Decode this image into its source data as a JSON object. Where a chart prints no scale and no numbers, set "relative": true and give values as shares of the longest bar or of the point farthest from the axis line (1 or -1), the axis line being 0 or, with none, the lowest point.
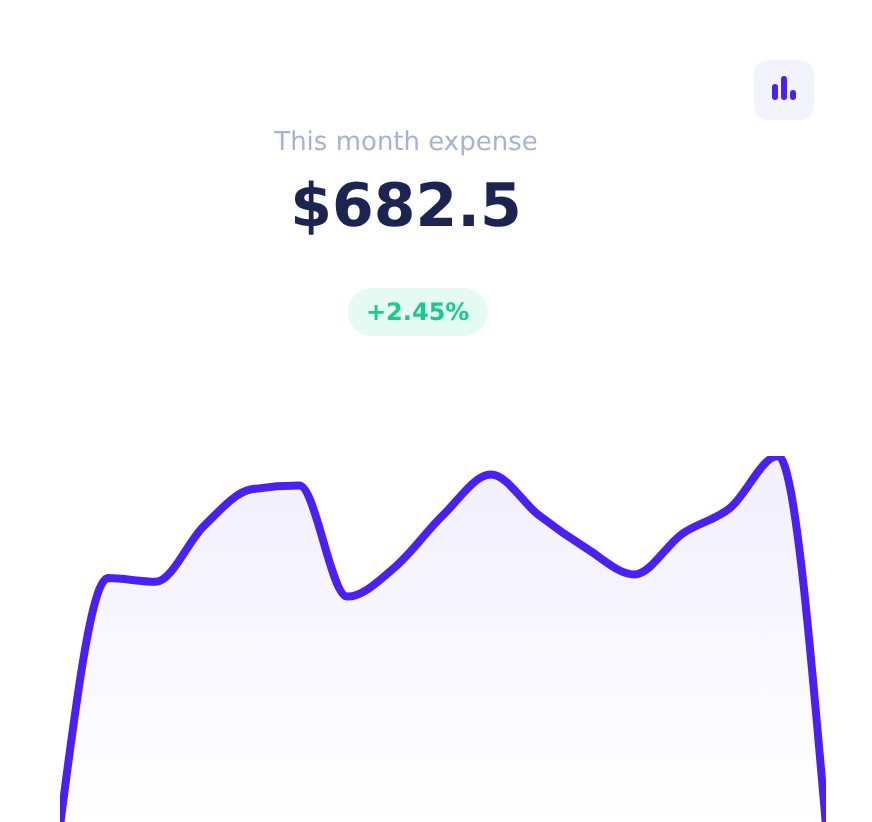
{
  "chart_data": {
    "type": "area",
    "title": "This month expense",
    "subtitle": "$682.5",
    "annotations": [
      "+2.45%"
    ],
    "relative": true,
    "categories": [
      null,
      null,
      null,
      null,
      null,
      null,
      null,
      null,
      null,
      null,
      null,
      null,
      null,
      null,
      null,
      null,
      null
    ],
    "series": [
      {
        "color": "#4b20f5",
        "values": [
          0,
          0.67,
          0.66,
          0.81,
          0.91,
          0.92,
          0.62,
          0.7,
          0.84,
          0.95,
          0.84,
          0.75,
          0.68,
          0.79,
          0.86,
          1,
          0
        ]
      }
    ]
  }
}
